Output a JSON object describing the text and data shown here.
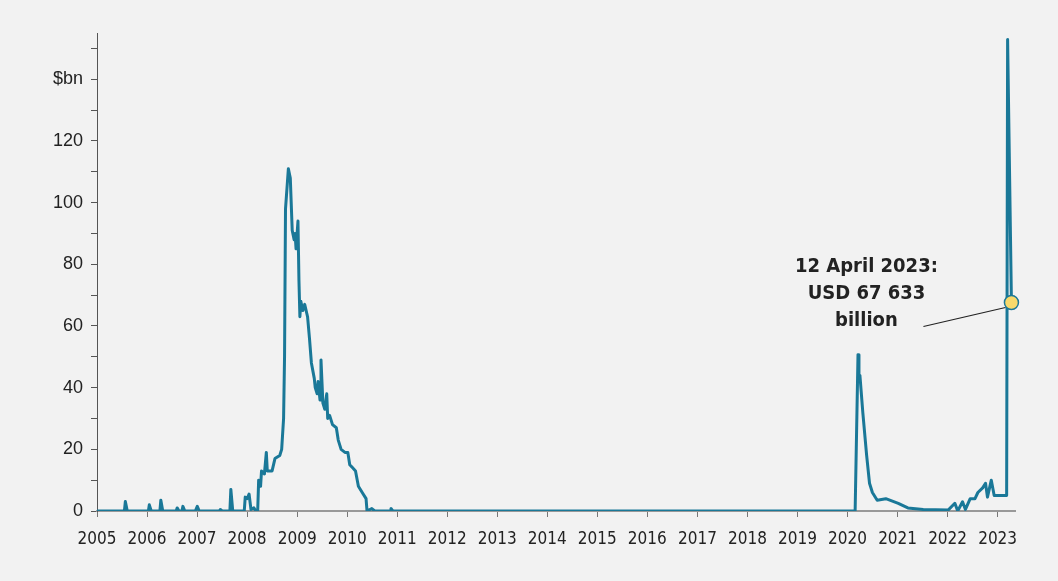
{
  "chart_data": {
    "type": "line",
    "xlim": [
      "2005-01-01",
      "2023-05-08"
    ],
    "xticks": [
      "2005",
      "2006",
      "2007",
      "2008",
      "2009",
      "2010",
      "2011",
      "2012",
      "2013",
      "2014",
      "2015",
      "2016",
      "2017",
      "2018",
      "2019",
      "2020",
      "2021",
      "2022",
      "2023"
    ],
    "ylim": [
      0,
      155
    ],
    "yticks": [
      0,
      {
        "value": 10,
        "label": null
      },
      20,
      {
        "value": 30,
        "label": null
      },
      40,
      {
        "value": 50,
        "label": null
      },
      60,
      {
        "value": 70,
        "label": null
      },
      80,
      {
        "value": 90,
        "label": null
      },
      100,
      {
        "value": 110,
        "label": null
      },
      120,
      {
        "value": 130,
        "label": null
      },
      {
        "value": 140,
        "label": "$bn"
      },
      {
        "value": 150,
        "label": null
      }
    ],
    "grid": false,
    "legend": false,
    "marker": "none",
    "line_style": "solid",
    "annotations": [
      {
        "text": "12 April 2023: USD 67 633 billion",
        "x": "2023-04-12",
        "y": 67.6
      }
    ],
    "series": [
      {
        "color": "#1a7898",
        "x": [
          "2005-01-05",
          "2005-07-20",
          "2005-07-27",
          "2005-08-10",
          "2006-01-11",
          "2006-01-18",
          "2006-02-01",
          "2006-04-05",
          "2006-04-12",
          "2006-04-26",
          "2006-08-02",
          "2006-08-09",
          "2006-08-23",
          "2006-09-13",
          "2006-09-20",
          "2006-10-04",
          "2006-12-20",
          "2007-01-03",
          "2007-01-17",
          "2007-06-13",
          "2007-06-20",
          "2007-07-04",
          "2007-08-29",
          "2007-09-05",
          "2007-09-19",
          "2007-12-12",
          "2007-12-19",
          "2008-01-02",
          "2008-01-16",
          "2008-01-30",
          "2008-02-20",
          "2008-03-05",
          "2008-03-19",
          "2008-03-26",
          "2008-04-09",
          "2008-04-16",
          "2008-05-07",
          "2008-05-21",
          "2008-05-28",
          "2008-07-02",
          "2008-07-23",
          "2008-08-27",
          "2008-09-10",
          "2008-09-24",
          "2008-10-01",
          "2008-10-08",
          "2008-10-29",
          "2008-11-12",
          "2008-11-26",
          "2008-12-10",
          "2008-12-17",
          "2008-12-24",
          "2009-01-07",
          "2009-01-14",
          "2009-01-21",
          "2009-01-28",
          "2009-02-11",
          "2009-02-25",
          "2009-03-18",
          "2009-04-01",
          "2009-04-15",
          "2009-05-06",
          "2009-05-13",
          "2009-05-27",
          "2009-06-03",
          "2009-06-17",
          "2009-06-24",
          "2009-07-08",
          "2009-07-22",
          "2009-08-05",
          "2009-08-12",
          "2009-08-26",
          "2009-09-16",
          "2009-10-14",
          "2009-10-28",
          "2009-11-18",
          "2009-12-16",
          "2010-01-06",
          "2010-01-20",
          "2010-02-10",
          "2010-03-03",
          "2010-03-24",
          "2010-04-21",
          "2010-05-19",
          "2010-05-26",
          "2010-06-30",
          "2010-07-21",
          "2010-11-10",
          "2010-11-17",
          "2010-12-01",
          "2020-02-26",
          "2020-03-18",
          "2020-03-25",
          "2020-04-01",
          "2020-04-22",
          "2020-05-20",
          "2020-06-10",
          "2020-07-01",
          "2020-08-05",
          "2020-10-07",
          "2021-01-06",
          "2021-03-17",
          "2021-07-07",
          "2022-01-05",
          "2022-02-23",
          "2022-03-16",
          "2022-04-20",
          "2022-05-11",
          "2022-06-15",
          "2022-07-20",
          "2022-08-10",
          "2022-09-14",
          "2022-10-05",
          "2022-10-19",
          "2022-11-16",
          "2022-12-07",
          "2023-01-04",
          "2023-01-25",
          "2023-03-08",
          "2023-03-15",
          "2023-04-12"
        ],
        "values": [
          0,
          0,
          3.1,
          0,
          0,
          2,
          0,
          0,
          3.5,
          0,
          0,
          1,
          0,
          0,
          1.5,
          0,
          0,
          1.5,
          0,
          0,
          0.5,
          0,
          0,
          7,
          0,
          0,
          4.5,
          4,
          5.5,
          0.5,
          1,
          0,
          0,
          10,
          8,
          13,
          12,
          19,
          13,
          13,
          17,
          18,
          20,
          30,
          50,
          98,
          111,
          108,
          91,
          88,
          90,
          85,
          94,
          75,
          63,
          68,
          65,
          67,
          63,
          56,
          48,
          43,
          40,
          38,
          42,
          36,
          49,
          35,
          33,
          38,
          30,
          31,
          28,
          27,
          23,
          20,
          19,
          19,
          15,
          14,
          13,
          8,
          6,
          4,
          0,
          0.8,
          0,
          0,
          0.8,
          0,
          0,
          50.7,
          43,
          44,
          32,
          18,
          9,
          6,
          3.5,
          4,
          2.5,
          1,
          0.5,
          0.3,
          2.5,
          0,
          3,
          0.5,
          4,
          4,
          6,
          7.5,
          9,
          4.5,
          10,
          5,
          5,
          5,
          5,
          152.9,
          67.6
        ]
      }
    ]
  }
}
